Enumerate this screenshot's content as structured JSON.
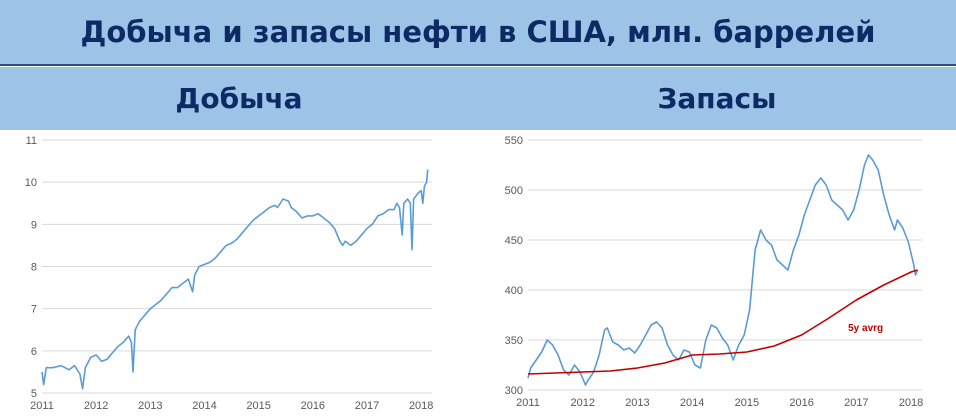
{
  "header": {
    "title": "Добыча и запасы нефти в США, млн. баррелей",
    "left_label": "Добыча",
    "right_label": "Запасы"
  },
  "chart_data": [
    {
      "type": "line",
      "title": "Добыча",
      "x_ticks": [
        "2011",
        "2012",
        "2013",
        "2014",
        "2015",
        "2016",
        "2017",
        "2018"
      ],
      "y_ticks": [
        5,
        6,
        7,
        8,
        9,
        10,
        11
      ],
      "ylim": [
        5,
        11
      ],
      "xlim": [
        2011,
        2018.2
      ],
      "grid": true,
      "series": [
        {
          "name": "",
          "color": "#5b9bd5",
          "points": [
            [
              2011.0,
              5.5
            ],
            [
              2011.03,
              5.2
            ],
            [
              2011.08,
              5.6
            ],
            [
              2011.2,
              5.6
            ],
            [
              2011.35,
              5.65
            ],
            [
              2011.5,
              5.55
            ],
            [
              2011.6,
              5.65
            ],
            [
              2011.7,
              5.45
            ],
            [
              2011.75,
              5.1
            ],
            [
              2011.8,
              5.6
            ],
            [
              2011.9,
              5.85
            ],
            [
              2012.0,
              5.9
            ],
            [
              2012.1,
              5.75
            ],
            [
              2012.2,
              5.8
            ],
            [
              2012.3,
              5.95
            ],
            [
              2012.4,
              6.1
            ],
            [
              2012.5,
              6.2
            ],
            [
              2012.6,
              6.35
            ],
            [
              2012.65,
              6.2
            ],
            [
              2012.68,
              5.5
            ],
            [
              2012.72,
              6.5
            ],
            [
              2012.8,
              6.7
            ],
            [
              2012.9,
              6.85
            ],
            [
              2013.0,
              7.0
            ],
            [
              2013.1,
              7.1
            ],
            [
              2013.2,
              7.2
            ],
            [
              2013.3,
              7.35
            ],
            [
              2013.4,
              7.5
            ],
            [
              2013.5,
              7.5
            ],
            [
              2013.6,
              7.6
            ],
            [
              2013.7,
              7.7
            ],
            [
              2013.78,
              7.4
            ],
            [
              2013.82,
              7.8
            ],
            [
              2013.9,
              8.0
            ],
            [
              2014.0,
              8.05
            ],
            [
              2014.1,
              8.1
            ],
            [
              2014.2,
              8.2
            ],
            [
              2014.3,
              8.35
            ],
            [
              2014.4,
              8.5
            ],
            [
              2014.5,
              8.55
            ],
            [
              2014.6,
              8.65
            ],
            [
              2014.7,
              8.8
            ],
            [
              2014.8,
              8.95
            ],
            [
              2014.9,
              9.1
            ],
            [
              2015.0,
              9.2
            ],
            [
              2015.1,
              9.3
            ],
            [
              2015.2,
              9.4
            ],
            [
              2015.3,
              9.45
            ],
            [
              2015.35,
              9.4
            ],
            [
              2015.45,
              9.6
            ],
            [
              2015.55,
              9.55
            ],
            [
              2015.6,
              9.4
            ],
            [
              2015.7,
              9.3
            ],
            [
              2015.8,
              9.15
            ],
            [
              2015.9,
              9.2
            ],
            [
              2016.0,
              9.2
            ],
            [
              2016.1,
              9.25
            ],
            [
              2016.2,
              9.15
            ],
            [
              2016.3,
              9.05
            ],
            [
              2016.4,
              8.9
            ],
            [
              2016.5,
              8.6
            ],
            [
              2016.55,
              8.5
            ],
            [
              2016.6,
              8.6
            ],
            [
              2016.7,
              8.5
            ],
            [
              2016.8,
              8.6
            ],
            [
              2016.9,
              8.75
            ],
            [
              2017.0,
              8.9
            ],
            [
              2017.1,
              9.0
            ],
            [
              2017.2,
              9.2
            ],
            [
              2017.3,
              9.25
            ],
            [
              2017.4,
              9.35
            ],
            [
              2017.5,
              9.35
            ],
            [
              2017.55,
              9.5
            ],
            [
              2017.6,
              9.4
            ],
            [
              2017.65,
              8.75
            ],
            [
              2017.68,
              9.5
            ],
            [
              2017.75,
              9.6
            ],
            [
              2017.8,
              9.5
            ],
            [
              2017.83,
              8.4
            ],
            [
              2017.86,
              9.6
            ],
            [
              2017.95,
              9.75
            ],
            [
              2018.0,
              9.8
            ],
            [
              2018.03,
              9.5
            ],
            [
              2018.06,
              9.9
            ],
            [
              2018.1,
              10.0
            ],
            [
              2018.12,
              10.3
            ]
          ]
        }
      ]
    },
    {
      "type": "line",
      "title": "Запасы",
      "x_ticks": [
        "2011",
        "2012",
        "2013",
        "2014",
        "2015",
        "2016",
        "2017",
        "2018"
      ],
      "y_ticks": [
        300,
        350,
        400,
        450,
        500,
        550
      ],
      "ylim": [
        300,
        550
      ],
      "xlim": [
        2011,
        2018.2
      ],
      "grid": true,
      "annotation": "5y avrg",
      "series": [
        {
          "name": "",
          "color": "#5b9bd5",
          "points": [
            [
              2011.0,
              312
            ],
            [
              2011.05,
              322
            ],
            [
              2011.15,
              330
            ],
            [
              2011.25,
              338
            ],
            [
              2011.35,
              350
            ],
            [
              2011.45,
              345
            ],
            [
              2011.55,
              335
            ],
            [
              2011.65,
              320
            ],
            [
              2011.75,
              315
            ],
            [
              2011.85,
              325
            ],
            [
              2011.95,
              318
            ],
            [
              2012.05,
              305
            ],
            [
              2012.1,
              310
            ],
            [
              2012.2,
              318
            ],
            [
              2012.3,
              335
            ],
            [
              2012.4,
              360
            ],
            [
              2012.45,
              362
            ],
            [
              2012.55,
              348
            ],
            [
              2012.65,
              345
            ],
            [
              2012.75,
              340
            ],
            [
              2012.85,
              342
            ],
            [
              2012.95,
              337
            ],
            [
              2013.05,
              345
            ],
            [
              2013.15,
              355
            ],
            [
              2013.25,
              365
            ],
            [
              2013.35,
              368
            ],
            [
              2013.45,
              362
            ],
            [
              2013.55,
              345
            ],
            [
              2013.65,
              335
            ],
            [
              2013.75,
              330
            ],
            [
              2013.85,
              340
            ],
            [
              2013.95,
              338
            ],
            [
              2014.05,
              325
            ],
            [
              2014.15,
              322
            ],
            [
              2014.25,
              350
            ],
            [
              2014.35,
              365
            ],
            [
              2014.45,
              362
            ],
            [
              2014.55,
              352
            ],
            [
              2014.65,
              345
            ],
            [
              2014.75,
              330
            ],
            [
              2014.85,
              345
            ],
            [
              2014.95,
              355
            ],
            [
              2015.05,
              380
            ],
            [
              2015.15,
              440
            ],
            [
              2015.25,
              460
            ],
            [
              2015.35,
              450
            ],
            [
              2015.45,
              445
            ],
            [
              2015.55,
              430
            ],
            [
              2015.65,
              425
            ],
            [
              2015.75,
              420
            ],
            [
              2015.85,
              440
            ],
            [
              2015.95,
              455
            ],
            [
              2016.05,
              475
            ],
            [
              2016.15,
              490
            ],
            [
              2016.25,
              505
            ],
            [
              2016.35,
              512
            ],
            [
              2016.45,
              505
            ],
            [
              2016.55,
              490
            ],
            [
              2016.65,
              485
            ],
            [
              2016.75,
              480
            ],
            [
              2016.85,
              470
            ],
            [
              2016.95,
              480
            ],
            [
              2017.05,
              500
            ],
            [
              2017.15,
              525
            ],
            [
              2017.22,
              535
            ],
            [
              2017.3,
              530
            ],
            [
              2017.4,
              520
            ],
            [
              2017.5,
              495
            ],
            [
              2017.6,
              475
            ],
            [
              2017.7,
              460
            ],
            [
              2017.75,
              470
            ],
            [
              2017.85,
              462
            ],
            [
              2017.95,
              448
            ],
            [
              2018.05,
              425
            ],
            [
              2018.08,
              415
            ],
            [
              2018.12,
              420
            ]
          ]
        },
        {
          "name": "5y avrg",
          "color": "#c00000",
          "points": [
            [
              2011.0,
              316
            ],
            [
              2011.5,
              317
            ],
            [
              2012.0,
              318
            ],
            [
              2012.5,
              319
            ],
            [
              2013.0,
              322
            ],
            [
              2013.5,
              327
            ],
            [
              2014.0,
              335
            ],
            [
              2014.5,
              336
            ],
            [
              2015.0,
              338
            ],
            [
              2015.5,
              344
            ],
            [
              2016.0,
              355
            ],
            [
              2016.5,
              372
            ],
            [
              2017.0,
              390
            ],
            [
              2017.5,
              405
            ],
            [
              2018.0,
              418
            ],
            [
              2018.12,
              420
            ]
          ]
        }
      ]
    }
  ]
}
